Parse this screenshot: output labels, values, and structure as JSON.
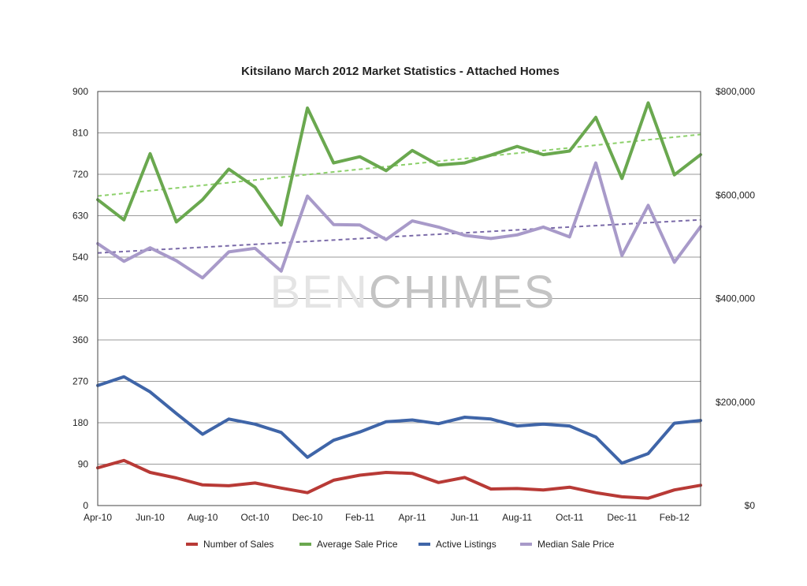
{
  "chart_data": {
    "type": "line",
    "title": "Kitsilano March 2012 Market Statistics - Attached Homes",
    "watermark": {
      "part1": "BEN",
      "part2": "CHIMES"
    },
    "categories": [
      "Apr-10",
      "May-10",
      "Jun-10",
      "Jul-10",
      "Aug-10",
      "Sep-10",
      "Oct-10",
      "Nov-10",
      "Dec-10",
      "Jan-11",
      "Feb-11",
      "Mar-11",
      "Apr-11",
      "May-11",
      "Jun-11",
      "Jul-11",
      "Aug-11",
      "Sep-11",
      "Oct-11",
      "Nov-11",
      "Dec-11",
      "Jan-12",
      "Feb-12",
      "Mar-12"
    ],
    "x_tick_labels": [
      "Apr-10",
      "Jun-10",
      "Aug-10",
      "Oct-10",
      "Dec-10",
      "Feb-11",
      "Apr-11",
      "Jun-11",
      "Aug-11",
      "Oct-11",
      "Dec-11",
      "Feb-12"
    ],
    "y_left": {
      "ylim": [
        0,
        900
      ],
      "ticks": [
        "0",
        "90",
        "180",
        "270",
        "360",
        "450",
        "540",
        "630",
        "720",
        "810",
        "900"
      ]
    },
    "y_right": {
      "ylim": [
        0,
        800000
      ],
      "ticks": [
        "$0",
        "$200,000",
        "$400,000",
        "$600,000",
        "$800,000"
      ]
    },
    "grid": true,
    "legend_position": "bottom",
    "series": [
      {
        "name": "Number of Sales",
        "axis": "left",
        "color": "#b83a36",
        "values": [
          82,
          98,
          72,
          60,
          45,
          43,
          49,
          38,
          28,
          55,
          66,
          72,
          70,
          50,
          61,
          36,
          37,
          34,
          40,
          28,
          19,
          16,
          34,
          44
        ]
      },
      {
        "name": "Average Sale Price",
        "axis": "right",
        "color": "#6aa84f",
        "values": [
          591000,
          552000,
          680000,
          548000,
          591000,
          650000,
          615000,
          542000,
          768000,
          662000,
          674000,
          647000,
          686000,
          658000,
          662000,
          677000,
          694000,
          678000,
          685000,
          750000,
          632000,
          778000,
          639000,
          678000
        ]
      },
      {
        "name": "Active Listings",
        "axis": "left",
        "color": "#3f65a8",
        "values": [
          261,
          280,
          247,
          200,
          155,
          188,
          177,
          159,
          105,
          142,
          160,
          182,
          186,
          178,
          192,
          188,
          173,
          177,
          173,
          149,
          92,
          113,
          179,
          185
        ]
      },
      {
        "name": "Median Sale Price",
        "axis": "right",
        "color": "#a89ac9",
        "values": [
          506000,
          472000,
          498000,
          473000,
          440000,
          490000,
          497000,
          453000,
          598000,
          543000,
          542000,
          514000,
          550000,
          538000,
          522000,
          516000,
          523000,
          538000,
          519000,
          662000,
          483000,
          580000,
          470000,
          539000
        ]
      }
    ],
    "trendlines": [
      {
        "of": "Average Sale Price",
        "axis": "right",
        "color": "#8cd06a",
        "start": 598000,
        "end": 717000
      },
      {
        "of": "Median Sale Price",
        "axis": "right",
        "color": "#7a6aa8",
        "start": 488000,
        "end": 552000
      }
    ]
  }
}
